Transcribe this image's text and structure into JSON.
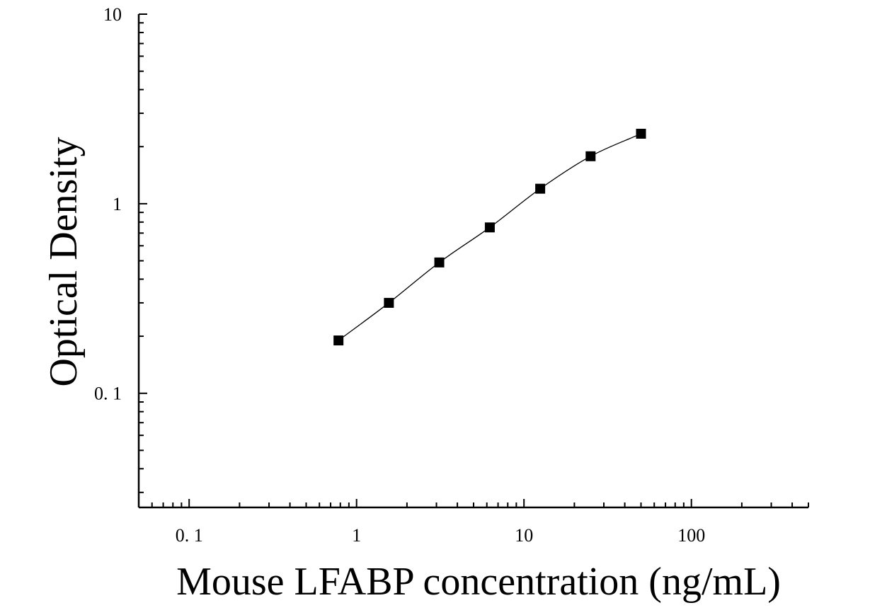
{
  "chart_data": {
    "type": "scatter",
    "title": "",
    "xlabel": "Mouse LFABP concentration (ng/mL)",
    "ylabel": "Optical Density",
    "xscale": "log",
    "yscale": "log",
    "xlim": [
      0.05,
      500
    ],
    "ylim": [
      0.025,
      10
    ],
    "x_ticks": [
      0.1,
      1,
      10,
      100
    ],
    "x_tick_labels": [
      "0. 1",
      "1",
      "10",
      "100"
    ],
    "y_ticks": [
      0.1,
      1,
      10
    ],
    "y_tick_labels": [
      "0. 1",
      "1",
      "10"
    ],
    "grid": false,
    "legend": "none",
    "marker": "square",
    "marker_color": "#000000",
    "curve_color": "#000000",
    "series": [
      {
        "x": [
          0.78,
          1.56,
          3.12,
          6.25,
          12.5,
          25,
          50
        ],
        "y": [
          0.19,
          0.3,
          0.49,
          0.75,
          1.2,
          1.78,
          2.34
        ]
      }
    ]
  }
}
